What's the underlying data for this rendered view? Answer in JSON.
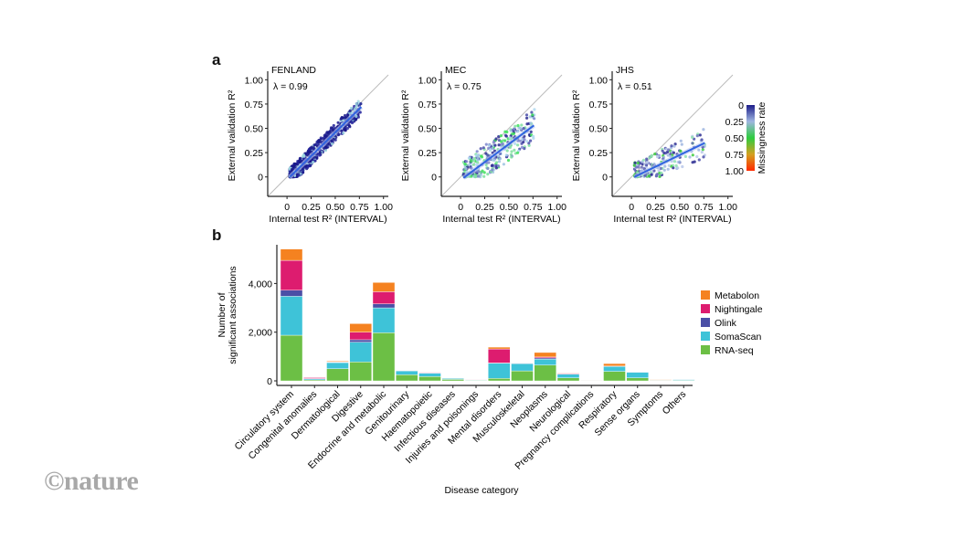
{
  "figure": {
    "panel_a_letter": "a",
    "panel_b_letter": "b",
    "watermark": "©nature"
  },
  "chart_data": [
    {
      "type": "scatter",
      "title": "FENLAND",
      "annotation": "λ = 0.99",
      "lambda": 0.99,
      "xlabel": "Internal test R² (INTERVAL)",
      "ylabel": "External validation R²",
      "xticks": [
        "0",
        "0.25",
        "0.50",
        "0.75",
        "1.00"
      ],
      "yticks": [
        "0",
        "0.25",
        "0.50",
        "0.75",
        "1.00"
      ],
      "xlim": [
        -0.2,
        1.05
      ],
      "ylim": [
        -0.2,
        1.05
      ],
      "identity_line": true,
      "fit_line": {
        "x": [
          0.03,
          0.77
        ],
        "y": [
          0.0,
          0.72
        ]
      },
      "dominant_color": "#1a1a8c",
      "description": "Dense cloud of points mostly missingness ~0, tightly along identity line"
    },
    {
      "type": "scatter",
      "title": "MEC",
      "annotation": "λ = 0.75",
      "lambda": 0.75,
      "xlabel": "Internal test R² (INTERVAL)",
      "ylabel": "External validation R²",
      "xticks": [
        "0",
        "0.25",
        "0.50",
        "0.75",
        "1.00"
      ],
      "yticks": [
        "0",
        "0.25",
        "0.50",
        "0.75",
        "1.00"
      ],
      "xlim": [
        -0.2,
        1.05
      ],
      "ylim": [
        -0.2,
        1.05
      ],
      "identity_line": true,
      "fit_line": {
        "x": [
          0.03,
          0.76
        ],
        "y": [
          -0.01,
          0.53
        ]
      },
      "dominant_color": "#5a5ab8",
      "description": "Mixed missingness points (blue, light blue, green), scattered below identity line"
    },
    {
      "type": "scatter",
      "title": "JHS",
      "annotation": "λ = 0.51",
      "lambda": 0.51,
      "xlabel": "Internal test R² (INTERVAL)",
      "ylabel": "External validation R²",
      "xticks": [
        "0",
        "0.25",
        "0.50",
        "0.75",
        "1.00"
      ],
      "yticks": [
        "0",
        "0.25",
        "0.50",
        "0.75",
        "1.00"
      ],
      "xlim": [
        -0.2,
        1.05
      ],
      "ylim": [
        -0.2,
        1.05
      ],
      "identity_line": true,
      "fit_line": {
        "x": [
          0.03,
          0.76
        ],
        "y": [
          0.0,
          0.35
        ]
      },
      "dominant_color": "#4a4aa8",
      "colorbar": {
        "label": "Missingness rate",
        "ticks": [
          "0",
          "0.25",
          "0.50",
          "0.75",
          "1.00"
        ],
        "colors": [
          "#1c1c8a",
          "#9fb6e0",
          "#2ecc40",
          "#d4a020",
          "#ff2a00"
        ]
      }
    },
    {
      "type": "bar",
      "stacked": true,
      "xlabel": "Disease category",
      "ylabel": "Number of significant associations",
      "yticks": [
        "0",
        "2,000",
        "4,000"
      ],
      "ylim": [
        0,
        5600
      ],
      "legend_position": "right",
      "categories": [
        "Circulatory system",
        "Congenital anomalies",
        "Dermatological",
        "Digestive",
        "Endocrine and metabolic",
        "Genitourinary",
        "Haematopoietic",
        "Infectious diseases",
        "Injuries and poisonings",
        "Mental disorders",
        "Musculoskeletal",
        "Neoplasms",
        "Neurological",
        "Pregnancy complications",
        "Respiratory",
        "Sense organs",
        "Symptoms",
        "Others"
      ],
      "series": [
        {
          "name": "RNA-seq",
          "color": "#6cbf45",
          "values": [
            1875,
            40,
            500,
            775,
            1975,
            250,
            175,
            60,
            20,
            100,
            410,
            650,
            125,
            15,
            390,
            125,
            20,
            20
          ]
        },
        {
          "name": "SomaScan",
          "color": "#3ec3d8",
          "values": [
            1600,
            45,
            250,
            815,
            1025,
            160,
            140,
            40,
            20,
            625,
            300,
            240,
            150,
            5,
            200,
            230,
            10,
            35
          ]
        },
        {
          "name": "Olink",
          "color": "#4b4fa6",
          "values": [
            250,
            10,
            15,
            100,
            165,
            10,
            20,
            5,
            5,
            10,
            15,
            50,
            10,
            0,
            10,
            10,
            5,
            5
          ]
        },
        {
          "name": "Nightingale",
          "color": "#dd1c6f",
          "values": [
            1225,
            40,
            15,
            310,
            495,
            10,
            20,
            3,
            15,
            575,
            10,
            40,
            30,
            0,
            10,
            0,
            15,
            5
          ]
        },
        {
          "name": "Metabolon",
          "color": "#f58220",
          "values": [
            465,
            5,
            30,
            350,
            380,
            10,
            10,
            2,
            0,
            75,
            5,
            185,
            10,
            5,
            100,
            0,
            10,
            0
          ]
        }
      ],
      "legend": [
        "Metabolon",
        "Nightingale",
        "Olink",
        "SomaScan",
        "RNA-seq"
      ]
    }
  ]
}
